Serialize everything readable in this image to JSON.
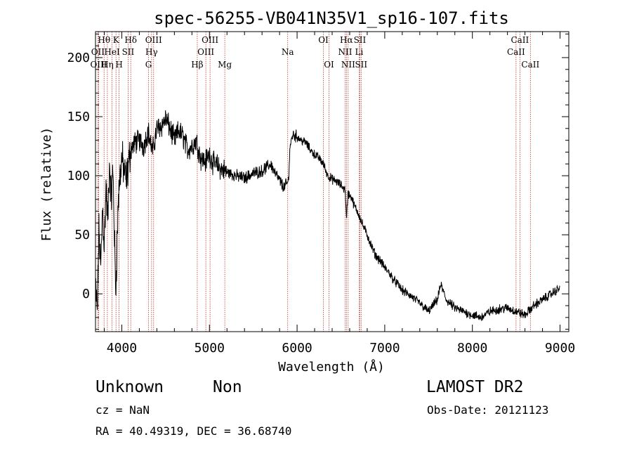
{
  "chart_data": {
    "type": "line",
    "title": "spec-56255-VB041N35V1_sp16-107.fits",
    "xlabel": "Wavelength (Å)",
    "ylabel": "Flux (relative)",
    "xlim": [
      3700,
      9100
    ],
    "ylim": [
      -32,
      222
    ],
    "xticks": [
      4000,
      5000,
      6000,
      7000,
      8000,
      9000
    ],
    "yticks": [
      0,
      50,
      100,
      150,
      200
    ],
    "grid": false,
    "line_color": "#000000",
    "marker_color": "#c0392b",
    "spectrum_anchors": [
      [
        3700,
        5
      ],
      [
        3720,
        -15
      ],
      [
        3740,
        55
      ],
      [
        3760,
        20
      ],
      [
        3780,
        75
      ],
      [
        3800,
        40
      ],
      [
        3820,
        90
      ],
      [
        3840,
        60
      ],
      [
        3860,
        110
      ],
      [
        3880,
        80
      ],
      [
        3900,
        105
      ],
      [
        3930,
        0
      ],
      [
        3960,
        80
      ],
      [
        3980,
        100
      ],
      [
        4000,
        115
      ],
      [
        4050,
        95
      ],
      [
        4100,
        122
      ],
      [
        4150,
        128
      ],
      [
        4200,
        130
      ],
      [
        4250,
        125
      ],
      [
        4300,
        138
      ],
      [
        4350,
        120
      ],
      [
        4400,
        140
      ],
      [
        4450,
        142
      ],
      [
        4500,
        148
      ],
      [
        4550,
        140
      ],
      [
        4600,
        130
      ],
      [
        4650,
        138
      ],
      [
        4700,
        133
      ],
      [
        4750,
        122
      ],
      [
        4800,
        125
      ],
      [
        4850,
        130
      ],
      [
        4900,
        115
      ],
      [
        4950,
        112
      ],
      [
        5000,
        118
      ],
      [
        5050,
        110
      ],
      [
        5100,
        108
      ],
      [
        5150,
        105
      ],
      [
        5200,
        103
      ],
      [
        5300,
        100
      ],
      [
        5400,
        98
      ],
      [
        5500,
        102
      ],
      [
        5600,
        104
      ],
      [
        5700,
        110
      ],
      [
        5750,
        102
      ],
      [
        5800,
        96
      ],
      [
        5850,
        90
      ],
      [
        5900,
        95
      ],
      [
        5920,
        125
      ],
      [
        5950,
        135
      ],
      [
        6000,
        133
      ],
      [
        6050,
        130
      ],
      [
        6100,
        128
      ],
      [
        6150,
        122
      ],
      [
        6200,
        118
      ],
      [
        6250,
        115
      ],
      [
        6300,
        110
      ],
      [
        6350,
        100
      ],
      [
        6400,
        97
      ],
      [
        6450,
        95
      ],
      [
        6500,
        92
      ],
      [
        6550,
        88
      ],
      [
        6563,
        62
      ],
      [
        6580,
        85
      ],
      [
        6620,
        82
      ],
      [
        6650,
        75
      ],
      [
        6700,
        68
      ],
      [
        6750,
        58
      ],
      [
        6800,
        50
      ],
      [
        6850,
        40
      ],
      [
        6900,
        32
      ],
      [
        6950,
        28
      ],
      [
        7000,
        22
      ],
      [
        7050,
        18
      ],
      [
        7100,
        12
      ],
      [
        7150,
        8
      ],
      [
        7200,
        3
      ],
      [
        7300,
        -2
      ],
      [
        7400,
        -8
      ],
      [
        7500,
        -15
      ],
      [
        7600,
        -5
      ],
      [
        7640,
        8
      ],
      [
        7700,
        -5
      ],
      [
        7800,
        -12
      ],
      [
        7900,
        -15
      ],
      [
        8000,
        -18
      ],
      [
        8100,
        -20
      ],
      [
        8200,
        -15
      ],
      [
        8300,
        -13
      ],
      [
        8400,
        -12
      ],
      [
        8500,
        -15
      ],
      [
        8600,
        -18
      ],
      [
        8700,
        -10
      ],
      [
        8800,
        -5
      ],
      [
        8900,
        0
      ],
      [
        9000,
        5
      ]
    ],
    "lines": [
      {
        "label": "Hθ",
        "wave": 3798,
        "row": 0
      },
      {
        "label": "OII",
        "wave": 3727,
        "row": 1
      },
      {
        "label": "OIII",
        "wave": 3736,
        "row": 2
      },
      {
        "label": "Hη",
        "wave": 3835,
        "row": 2
      },
      {
        "label": "HeI",
        "wave": 3889,
        "row": 1
      },
      {
        "label": "K",
        "wave": 3934,
        "row": 0
      },
      {
        "label": "H",
        "wave": 3969,
        "row": 2
      },
      {
        "label": "SII",
        "wave": 4072,
        "row": 1
      },
      {
        "label": "Hδ",
        "wave": 4102,
        "row": 0
      },
      {
        "label": "G",
        "wave": 4305,
        "row": 2
      },
      {
        "label": "Hγ",
        "wave": 4340,
        "row": 1
      },
      {
        "label": "OIII",
        "wave": 4363,
        "row": 0
      },
      {
        "label": "Hβ",
        "wave": 4861,
        "row": 2
      },
      {
        "label": "OIII",
        "wave": 4959,
        "row": 1
      },
      {
        "label": "OIII",
        "wave": 5007,
        "row": 0
      },
      {
        "label": "Mg",
        "wave": 5175,
        "row": 2
      },
      {
        "label": "Na",
        "wave": 5893,
        "row": 1
      },
      {
        "label": "OI",
        "wave": 6300,
        "row": 0
      },
      {
        "label": "OI",
        "wave": 6364,
        "row": 2
      },
      {
        "label": "NII",
        "wave": 6548,
        "row": 1
      },
      {
        "label": "Hα",
        "wave": 6563,
        "row": 0
      },
      {
        "label": "NII",
        "wave": 6583,
        "row": 2
      },
      {
        "label": "Li",
        "wave": 6708,
        "row": 1
      },
      {
        "label": "SII",
        "wave": 6716,
        "row": 0
      },
      {
        "label": "SII",
        "wave": 6731,
        "row": 2
      },
      {
        "label": "CaII",
        "wave": 8498,
        "row": 1
      },
      {
        "label": "CaII",
        "wave": 8542,
        "row": 0
      },
      {
        "label": "CaII",
        "wave": 8662,
        "row": 2
      }
    ]
  },
  "info": {
    "class": "Unknown",
    "subclass": "Non",
    "survey": "LAMOST DR2",
    "cz": "cz = NaN",
    "obs_date": "Obs-Date: 20121123",
    "coords": "RA =  40.49319, DEC =  36.68740"
  }
}
